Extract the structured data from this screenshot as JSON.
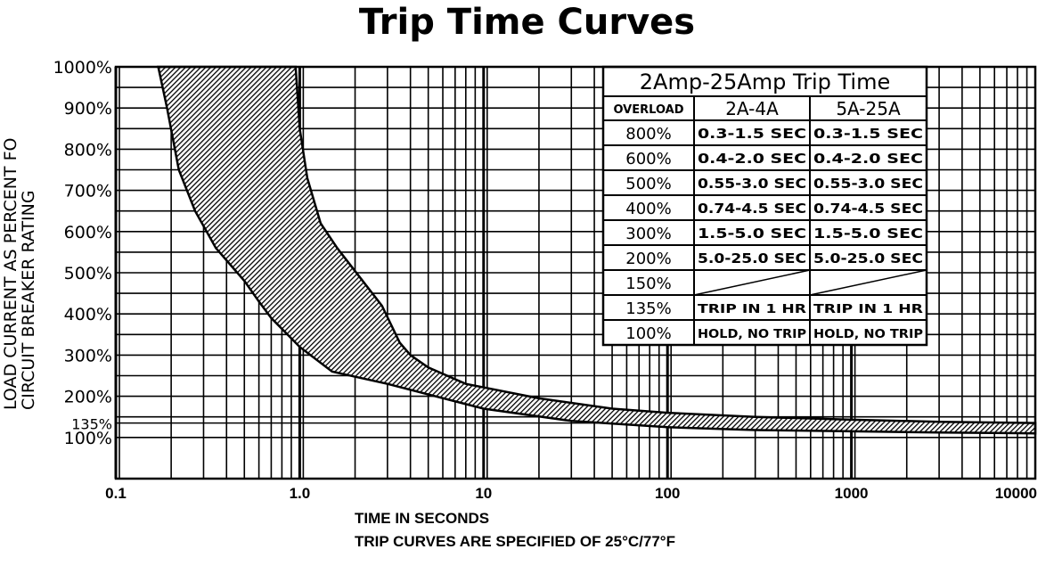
{
  "title": "Trip Time Curves",
  "ylabel_line1": "LOAD CURRENT AS PERCENT FO",
  "ylabel_line2": "CIRCUIT BREAKER RATING",
  "xlabel": "TIME IN SECONDS",
  "footnote": "TRIP CURVES ARE SPECIFIED OF 25°C/77°F",
  "chart_data": {
    "type": "area",
    "title": "Trip Time Curves",
    "xlabel": "TIME IN SECONDS",
    "ylabel": "LOAD CURRENT AS PERCENT FO CIRCUIT BREAKER RATING",
    "x_scale": "log",
    "xlim": [
      0.1,
      10000
    ],
    "ylim": [
      0,
      1000
    ],
    "x_ticks": [
      "0.1",
      "1.0",
      "10",
      "100",
      "1000",
      "10000"
    ],
    "y_ticks": [
      "100%",
      "135%",
      "200%",
      "300%",
      "400%",
      "500%",
      "600%",
      "700%",
      "800%",
      "900%",
      "1000%"
    ],
    "grid": true,
    "series": [
      {
        "boundary": "min",
        "x": [
          0.17,
          0.19,
          0.22,
          0.27,
          0.35,
          0.5,
          0.6,
          0.7,
          1.0,
          1.5,
          3,
          10,
          30,
          100,
          300,
          1000,
          3000,
          10000
        ],
        "y": [
          1000,
          900,
          750,
          650,
          560,
          480,
          430,
          390,
          320,
          260,
          230,
          170,
          140,
          125,
          118,
          115,
          112,
          110
        ]
      },
      {
        "boundary": "max",
        "x": [
          0.95,
          1.0,
          1.1,
          1.3,
          1.6,
          2.2,
          2.8,
          3.5,
          4,
          5,
          8,
          20,
          50,
          100,
          300,
          1000,
          3000,
          10000
        ],
        "y": [
          1000,
          850,
          730,
          620,
          560,
          480,
          420,
          330,
          300,
          270,
          230,
          195,
          170,
          160,
          150,
          143,
          138,
          135
        ]
      }
    ],
    "table": {
      "title": "2Amp-25Amp Trip Time",
      "headers": [
        "OVERLOAD",
        "2A-4A",
        "5A-25A"
      ],
      "rows": [
        [
          "800%",
          "0.3-1.5 SEC",
          "0.3-1.5 SEC"
        ],
        [
          "600%",
          "0.4-2.0 SEC",
          "0.4-2.0 SEC"
        ],
        [
          "500%",
          "0.55-3.0 SEC",
          "0.55-3.0 SEC"
        ],
        [
          "400%",
          "0.74-4.5 SEC",
          "0.74-4.5 SEC"
        ],
        [
          "300%",
          "1.5-5.0 SEC",
          "1.5-5.0 SEC"
        ],
        [
          "200%",
          "5.0-25.0 SEC",
          "5.0-25.0 SEC"
        ],
        [
          "150%",
          "",
          ""
        ],
        [
          "135%",
          "TRIP IN 1 HR",
          "TRIP IN 1 HR"
        ],
        [
          "100%",
          "HOLD, NO TRIP",
          "HOLD, NO TRIP"
        ]
      ]
    }
  }
}
